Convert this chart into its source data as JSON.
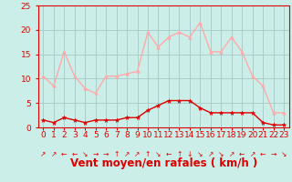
{
  "hours": [
    0,
    1,
    2,
    3,
    4,
    5,
    6,
    7,
    8,
    9,
    10,
    11,
    12,
    13,
    14,
    15,
    16,
    17,
    18,
    19,
    20,
    21,
    22,
    23
  ],
  "wind_avg": [
    1.5,
    1.0,
    2.0,
    1.5,
    1.0,
    1.5,
    1.5,
    1.5,
    2.0,
    2.0,
    3.5,
    4.5,
    5.5,
    5.5,
    5.5,
    4.0,
    3.0,
    3.0,
    3.0,
    3.0,
    3.0,
    1.0,
    0.5,
    0.5
  ],
  "wind_gust": [
    10.5,
    8.5,
    15.5,
    10.5,
    8.0,
    7.0,
    10.5,
    10.5,
    11.0,
    11.5,
    19.5,
    16.5,
    18.5,
    19.5,
    18.5,
    21.5,
    15.5,
    15.5,
    18.5,
    15.5,
    10.5,
    8.5,
    3.0,
    3.0
  ],
  "ylim": [
    0,
    25
  ],
  "yticks": [
    0,
    5,
    10,
    15,
    20,
    25
  ],
  "xlabel": "Vent moyen/en rafales ( km/h )",
  "bg_color": "#cceee8",
  "grid_color": "#aacccc",
  "avg_color": "#dd0000",
  "gust_color": "#ffaaaa",
  "axis_color": "#dd0000",
  "tick_color": "#dd0000",
  "label_color": "#dd0000",
  "tick_fontsize": 6.5,
  "label_fontsize": 8.5,
  "arrow_symbols": [
    "↗",
    "↗",
    "←",
    "←",
    "↘",
    "→",
    "→",
    "↑",
    "↗",
    "↗",
    "↑",
    "↘",
    "←",
    "↑",
    "↓",
    "↘",
    "↗",
    "↘",
    "↗",
    "←",
    "↗",
    "←",
    "→",
    "↘"
  ]
}
